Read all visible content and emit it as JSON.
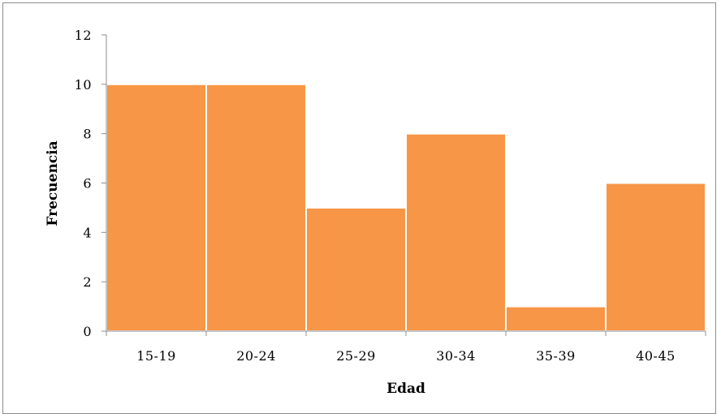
{
  "chart_data": {
    "type": "bar",
    "categories": [
      "15-19",
      "20-24",
      "25-29",
      "30-34",
      "35-39",
      "40-45"
    ],
    "values": [
      10,
      10,
      5,
      8,
      1,
      6
    ],
    "xlabel": "Edad",
    "ylabel": "Frecuencia",
    "ylim": [
      0,
      12
    ],
    "yticks": [
      0,
      2,
      4,
      6,
      8,
      10,
      12
    ],
    "grid": false,
    "legend": "none",
    "bar_color": "#F79646",
    "axis_color": "#8C8C8C"
  }
}
